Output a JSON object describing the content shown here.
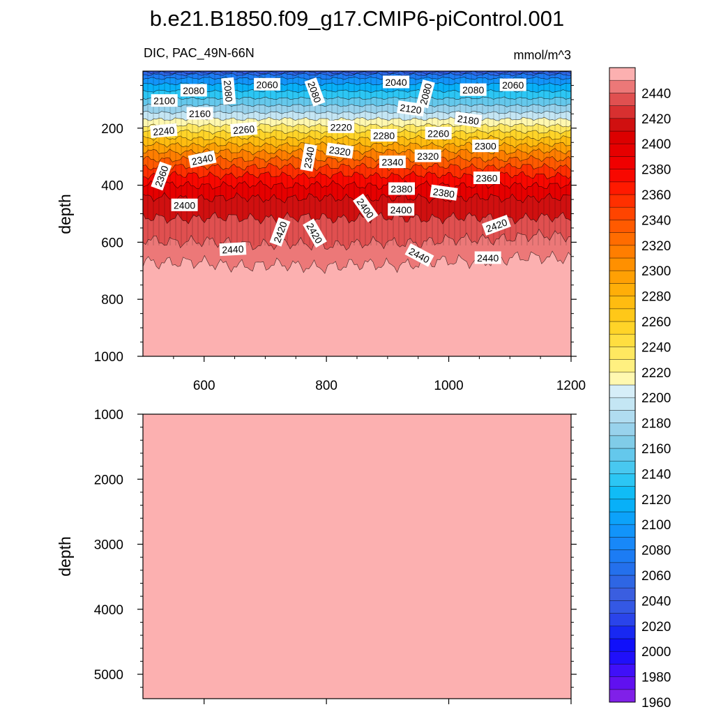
{
  "chart_data": {
    "type": "heatmap",
    "title": "b.e21.B1850.f09_g17.CMIP6-piControl.001",
    "variable_label": "DIC, PAC_49N-66N",
    "units_label": "mmol/m^3",
    "panels": [
      {
        "name": "upper",
        "ylabel": "depth",
        "xlim": [
          500,
          1200
        ],
        "ylim": [
          0,
          1000
        ],
        "y_reversed": true,
        "x_ticks": [
          600,
          800,
          1000,
          1200
        ],
        "y_ticks": [
          200,
          400,
          600,
          800,
          1000
        ],
        "contour_depths_approx": [
          {
            "level": 2040,
            "depth": 5
          },
          {
            "level": 2060,
            "depth": 12
          },
          {
            "level": 2080,
            "depth": 25
          },
          {
            "level": 2100,
            "depth": 45
          },
          {
            "level": 2120,
            "depth": 70
          },
          {
            "level": 2140,
            "depth": 95
          },
          {
            "level": 2160,
            "depth": 120
          },
          {
            "level": 2180,
            "depth": 145
          },
          {
            "level": 2200,
            "depth": 168
          },
          {
            "level": 2220,
            "depth": 190
          },
          {
            "level": 2240,
            "depth": 212
          },
          {
            "level": 2260,
            "depth": 235
          },
          {
            "level": 2280,
            "depth": 258
          },
          {
            "level": 2300,
            "depth": 282
          },
          {
            "level": 2320,
            "depth": 308
          },
          {
            "level": 2340,
            "depth": 335
          },
          {
            "level": 2360,
            "depth": 365
          },
          {
            "level": 2380,
            "depth": 400
          },
          {
            "level": 2400,
            "depth": 445
          },
          {
            "level": 2420,
            "depth": 515
          },
          {
            "level": 2440,
            "depth": 590
          },
          {
            "level": 2450,
            "depth": 665
          }
        ],
        "contour_labels": [
          {
            "text": "2100",
            "x": 535,
            "depth": 103,
            "angle": 0
          },
          {
            "text": "2080",
            "x": 583,
            "depth": 67,
            "angle": 0
          },
          {
            "text": "2080",
            "x": 640,
            "depth": 70,
            "angle": 85
          },
          {
            "text": "2060",
            "x": 703,
            "depth": 46,
            "angle": 0
          },
          {
            "text": "2080",
            "x": 781,
            "depth": 73,
            "angle": 70
          },
          {
            "text": "2040",
            "x": 914,
            "depth": 38,
            "angle": 0
          },
          {
            "text": "2080",
            "x": 1040,
            "depth": 65,
            "angle": 0
          },
          {
            "text": "2060",
            "x": 1105,
            "depth": 48,
            "angle": 0
          },
          {
            "text": "2080",
            "x": 962,
            "depth": 80,
            "angle": -75
          },
          {
            "text": "2120",
            "x": 938,
            "depth": 131,
            "angle": 8
          },
          {
            "text": "2180",
            "x": 1032,
            "depth": 170,
            "angle": 8
          },
          {
            "text": "2160",
            "x": 593,
            "depth": 148,
            "angle": 0
          },
          {
            "text": "2240",
            "x": 534,
            "depth": 209,
            "angle": -5
          },
          {
            "text": "2260",
            "x": 665,
            "depth": 204,
            "angle": -5
          },
          {
            "text": "2220",
            "x": 824,
            "depth": 195,
            "angle": 0
          },
          {
            "text": "2280",
            "x": 894,
            "depth": 225,
            "angle": 0
          },
          {
            "text": "2260",
            "x": 983,
            "depth": 217,
            "angle": 0
          },
          {
            "text": "2320",
            "x": 822,
            "depth": 279,
            "angle": 8
          },
          {
            "text": "2340",
            "x": 771,
            "depth": 303,
            "angle": -80
          },
          {
            "text": "2340",
            "x": 597,
            "depth": 309,
            "angle": -12
          },
          {
            "text": "2360",
            "x": 530,
            "depth": 368,
            "angle": -70
          },
          {
            "text": "2340",
            "x": 908,
            "depth": 318,
            "angle": 0
          },
          {
            "text": "2320",
            "x": 966,
            "depth": 297,
            "angle": 0
          },
          {
            "text": "2300",
            "x": 1060,
            "depth": 262,
            "angle": 0
          },
          {
            "text": "2380",
            "x": 923,
            "depth": 412,
            "angle": 0
          },
          {
            "text": "2380",
            "x": 992,
            "depth": 426,
            "angle": 8
          },
          {
            "text": "2360",
            "x": 1062,
            "depth": 374,
            "angle": 0
          },
          {
            "text": "2400",
            "x": 568,
            "depth": 469,
            "angle": 0
          },
          {
            "text": "2400",
            "x": 864,
            "depth": 480,
            "angle": 55
          },
          {
            "text": "2400",
            "x": 922,
            "depth": 485,
            "angle": 0
          },
          {
            "text": "2420",
            "x": 724,
            "depth": 564,
            "angle": -70
          },
          {
            "text": "2420",
            "x": 781,
            "depth": 568,
            "angle": 60
          },
          {
            "text": "2420",
            "x": 1078,
            "depth": 540,
            "angle": -20
          },
          {
            "text": "2440",
            "x": 647,
            "depth": 624,
            "angle": -3
          },
          {
            "text": "2440",
            "x": 952,
            "depth": 645,
            "angle": 28
          },
          {
            "text": "2440",
            "x": 1064,
            "depth": 654,
            "angle": 0
          }
        ]
      },
      {
        "name": "lower",
        "ylabel": "depth",
        "xlim": [
          500,
          1200
        ],
        "ylim": [
          1000,
          5375
        ],
        "y_reversed": true,
        "y_ticks": [
          1000,
          2000,
          3000,
          4000,
          5000
        ],
        "fill_level": "above 2440"
      }
    ],
    "colorbar": {
      "levels": [
        1960,
        1970,
        1980,
        1990,
        2000,
        2010,
        2020,
        2030,
        2040,
        2050,
        2060,
        2070,
        2080,
        2090,
        2100,
        2110,
        2120,
        2130,
        2140,
        2150,
        2160,
        2170,
        2180,
        2190,
        2200,
        2210,
        2220,
        2230,
        2240,
        2250,
        2260,
        2270,
        2280,
        2290,
        2300,
        2310,
        2320,
        2330,
        2340,
        2350,
        2360,
        2370,
        2380,
        2390,
        2400,
        2410,
        2420,
        2430,
        2440,
        2450
      ],
      "labels": [
        "2440",
        "2420",
        "2400",
        "2380",
        "2360",
        "2340",
        "2320",
        "2300",
        "2280",
        "2260",
        "2240",
        "2220",
        "2200",
        "2180",
        "2160",
        "2140",
        "2120",
        "2100",
        "2080",
        "2060",
        "2040",
        "2020",
        "2000",
        "1980",
        "1960"
      ],
      "colors": [
        "#8020e8",
        "#6010f0",
        "#4010f8",
        "#2010fa",
        "#1010fa",
        "#1828f2",
        "#2a44ea",
        "#3458e4",
        "#3a5ee0",
        "#2e66e4",
        "#2470ec",
        "#1c7cf4",
        "#1888f8",
        "#1294fa",
        "#0ca2fa",
        "#08b0f8",
        "#10bcf6",
        "#2cc6f4",
        "#48c8f0",
        "#64c8ec",
        "#80cce8",
        "#98d2ec",
        "#b0dcf0",
        "#c4e6f4",
        "#d6eef8",
        "#fff8b0",
        "#fff080",
        "#ffe860",
        "#ffde40",
        "#ffd428",
        "#ffc818",
        "#ffbc10",
        "#ffae08",
        "#ffa004",
        "#ff9000",
        "#ff7e00",
        "#ff6c00",
        "#ff5a00",
        "#ff4400",
        "#ff3000",
        "#ff1a00",
        "#f80800",
        "#f00000",
        "#e60000",
        "#dc0000",
        "#d01010",
        "#d83030",
        "#e05050",
        "#ec7878",
        "#fcb0b0"
      ]
    }
  }
}
